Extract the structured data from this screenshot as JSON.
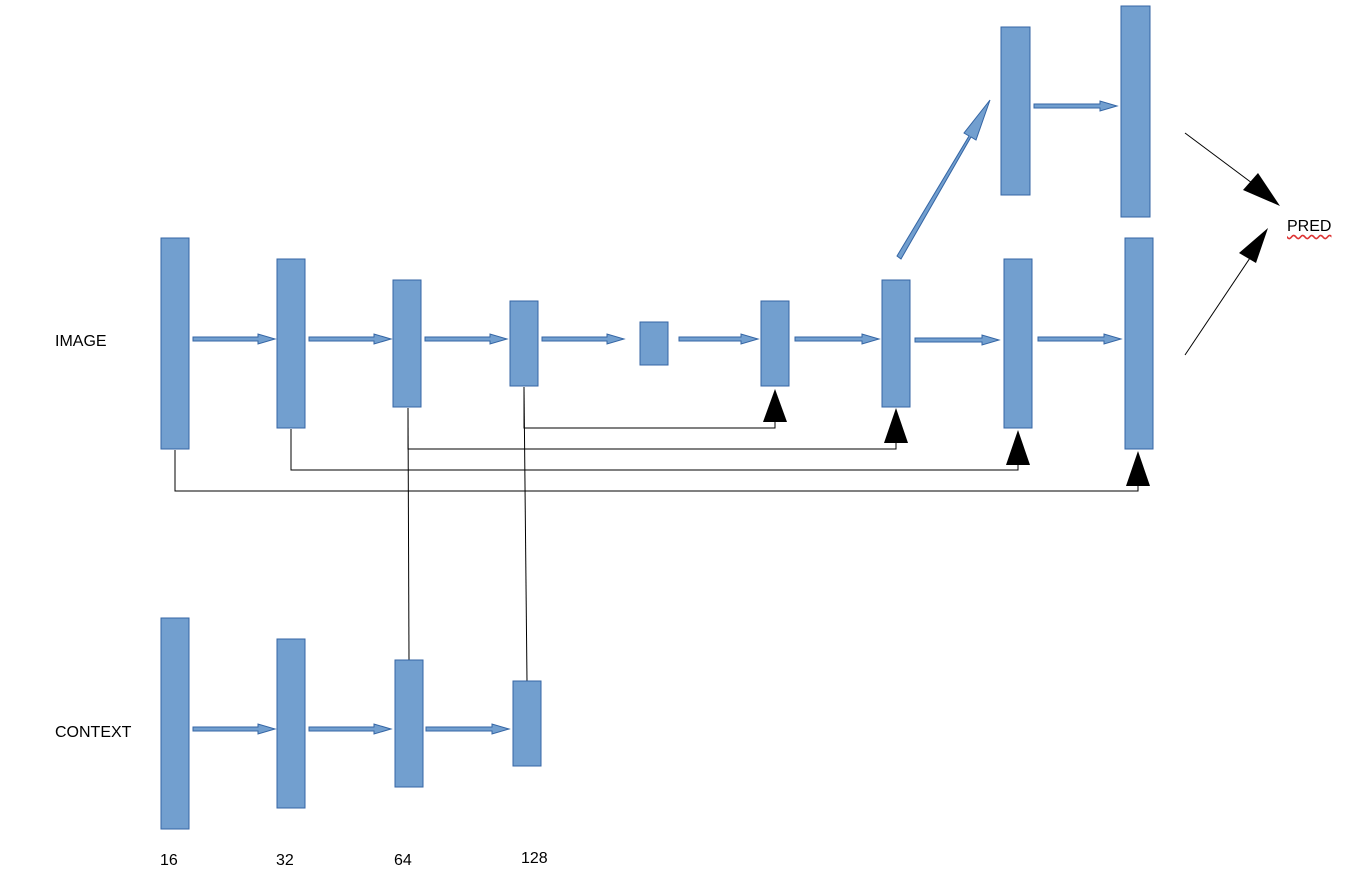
{
  "labels": {
    "image": "IMAGE",
    "context": "CONTEXT",
    "pred": "PRED"
  },
  "channels": [
    "16",
    "32",
    "64",
    "128"
  ],
  "colors": {
    "block_fill": "#729fcf",
    "block_stroke": "#3465a4",
    "line": "#000000",
    "pred_underline": "#dd3333"
  }
}
